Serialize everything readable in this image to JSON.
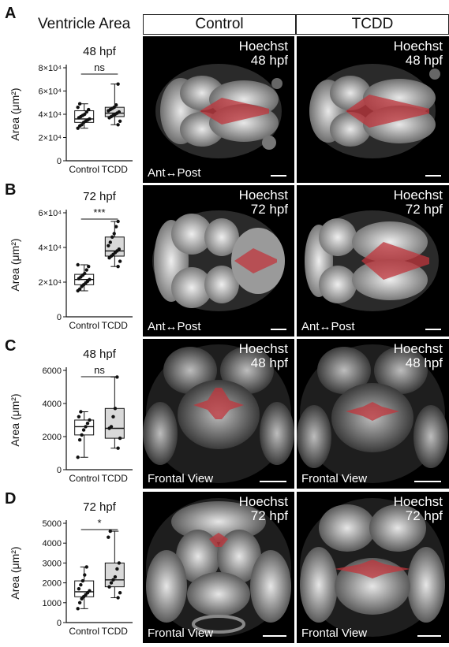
{
  "figure": {
    "main_title": "Ventricle Area",
    "col_headers": [
      "Control",
      "TCDD"
    ],
    "colors": {
      "ventricle": "#c0363c",
      "box_control": "#ffffff",
      "box_tcdd": "#d9d9d9",
      "background": "#000000",
      "overlay_text": "#ffffff"
    }
  },
  "panels": [
    {
      "letter": "A",
      "view_label": "Ant↔Post",
      "images": [
        {
          "stain": "Hoechst",
          "stage": "48 hpf"
        },
        {
          "stain": "Hoechst",
          "stage": "48 hpf"
        }
      ]
    },
    {
      "letter": "B",
      "view_label": "Ant↔Post",
      "images": [
        {
          "stain": "Hoechst",
          "stage": "72 hpf"
        },
        {
          "stain": "Hoechst",
          "stage": "72 hpf"
        }
      ]
    },
    {
      "letter": "C",
      "view_label": "Frontal View",
      "images": [
        {
          "stain": "Hoechst",
          "stage": "48 hpf"
        },
        {
          "stain": "Hoechst",
          "stage": "48 hpf"
        }
      ]
    },
    {
      "letter": "D",
      "view_label": "Frontal View",
      "images": [
        {
          "stain": "Hoechst",
          "stage": "72 hpf"
        },
        {
          "stain": "Hoechst",
          "stage": "72 hpf"
        }
      ]
    }
  ],
  "chart_data": [
    {
      "type": "box",
      "title": "48 hpf",
      "ylabel": "Area (μm²)",
      "categories": [
        "Control",
        "TCDD"
      ],
      "ylim": [
        0,
        80000
      ],
      "yticks": [
        0,
        20000,
        40000,
        60000,
        80000
      ],
      "ytick_labels": [
        "0",
        "2×10⁴",
        "4×10⁴",
        "6×10⁴",
        "8×10⁴"
      ],
      "significance": "ns",
      "series": [
        {
          "name": "Control",
          "box_fill": "#ffffff",
          "whisker_low": 28000,
          "q1": 33000,
          "median": 36000,
          "q3": 43000,
          "whisker_high": 49000,
          "points": [
            28000,
            30000,
            31000,
            33000,
            34000,
            35000,
            36000,
            37000,
            38000,
            39000,
            40000,
            42000,
            44000,
            46000,
            49000
          ]
        },
        {
          "name": "TCDD",
          "box_fill": "#d9d9d9",
          "whisker_low": 31000,
          "q1": 38000,
          "median": 41000,
          "q3": 46000,
          "whisker_high": 66000,
          "points": [
            31000,
            34000,
            37000,
            38000,
            39000,
            40000,
            41000,
            42000,
            43000,
            44000,
            45000,
            46000,
            48000,
            66000
          ]
        }
      ]
    },
    {
      "type": "box",
      "title": "72 hpf",
      "ylabel": "Area (μm²)",
      "categories": [
        "Control",
        "TCDD"
      ],
      "ylim": [
        0,
        60000
      ],
      "yticks": [
        0,
        20000,
        40000,
        60000
      ],
      "ytick_labels": [
        "0",
        "2×10⁴",
        "4×10⁴",
        "6×10⁴"
      ],
      "significance": "***",
      "series": [
        {
          "name": "Control",
          "box_fill": "#ffffff",
          "whisker_low": 15000,
          "q1": 18500,
          "median": 21500,
          "q3": 24500,
          "whisker_high": 30000,
          "points": [
            15000,
            16000,
            17500,
            18500,
            19500,
            20500,
            21500,
            22000,
            23000,
            24000,
            25000,
            27000,
            29000,
            30000
          ]
        },
        {
          "name": "TCDD",
          "box_fill": "#d9d9d9",
          "whisker_low": 29000,
          "q1": 35000,
          "median": 38000,
          "q3": 46000,
          "whisker_high": 55000,
          "points": [
            29000,
            32000,
            34000,
            35000,
            36000,
            37000,
            38000,
            39000,
            41000,
            43000,
            46000,
            48000,
            52000,
            55000
          ]
        }
      ]
    },
    {
      "type": "box",
      "title": "48 hpf",
      "ylabel": "Area (μm²)",
      "categories": [
        "Control",
        "TCDD"
      ],
      "ylim": [
        0,
        6000
      ],
      "yticks": [
        0,
        2000,
        4000,
        6000
      ],
      "ytick_labels": [
        "0",
        "2000",
        "4000",
        "6000"
      ],
      "significance": "ns",
      "series": [
        {
          "name": "Control",
          "box_fill": "#ffffff",
          "whisker_low": 750,
          "q1": 2100,
          "median": 2600,
          "q3": 3000,
          "whisker_high": 3500,
          "points": [
            750,
            1800,
            2100,
            2400,
            2600,
            2800,
            3000,
            3200,
            3500
          ]
        },
        {
          "name": "TCDD",
          "box_fill": "#d9d9d9",
          "whisker_low": 1300,
          "q1": 1900,
          "median": 2500,
          "q3": 3700,
          "whisker_high": 5600,
          "points": [
            1300,
            1900,
            2500,
            2600,
            3200,
            3700,
            5600
          ]
        }
      ]
    },
    {
      "type": "box",
      "title": "72 hpf",
      "ylabel": "Area (μm²)",
      "categories": [
        "Control",
        "TCDD"
      ],
      "ylim": [
        0,
        5000
      ],
      "yticks": [
        0,
        1000,
        2000,
        3000,
        4000,
        5000
      ],
      "ytick_labels": [
        "0",
        "1000",
        "2000",
        "3000",
        "4000",
        "5000"
      ],
      "significance": "*",
      "series": [
        {
          "name": "Control",
          "box_fill": "#ffffff",
          "whisker_low": 700,
          "q1": 1300,
          "median": 1550,
          "q3": 2100,
          "whisker_high": 2800,
          "points": [
            700,
            1000,
            1200,
            1300,
            1400,
            1500,
            1600,
            1700,
            1900,
            2100,
            2400,
            2800
          ]
        },
        {
          "name": "TCDD",
          "box_fill": "#d9d9d9",
          "whisker_low": 1250,
          "q1": 1800,
          "median": 2150,
          "q3": 3000,
          "whisker_high": 4600,
          "points": [
            1250,
            1500,
            1800,
            2000,
            2150,
            2300,
            2700,
            3000,
            4300,
            4600
          ]
        }
      ]
    }
  ]
}
